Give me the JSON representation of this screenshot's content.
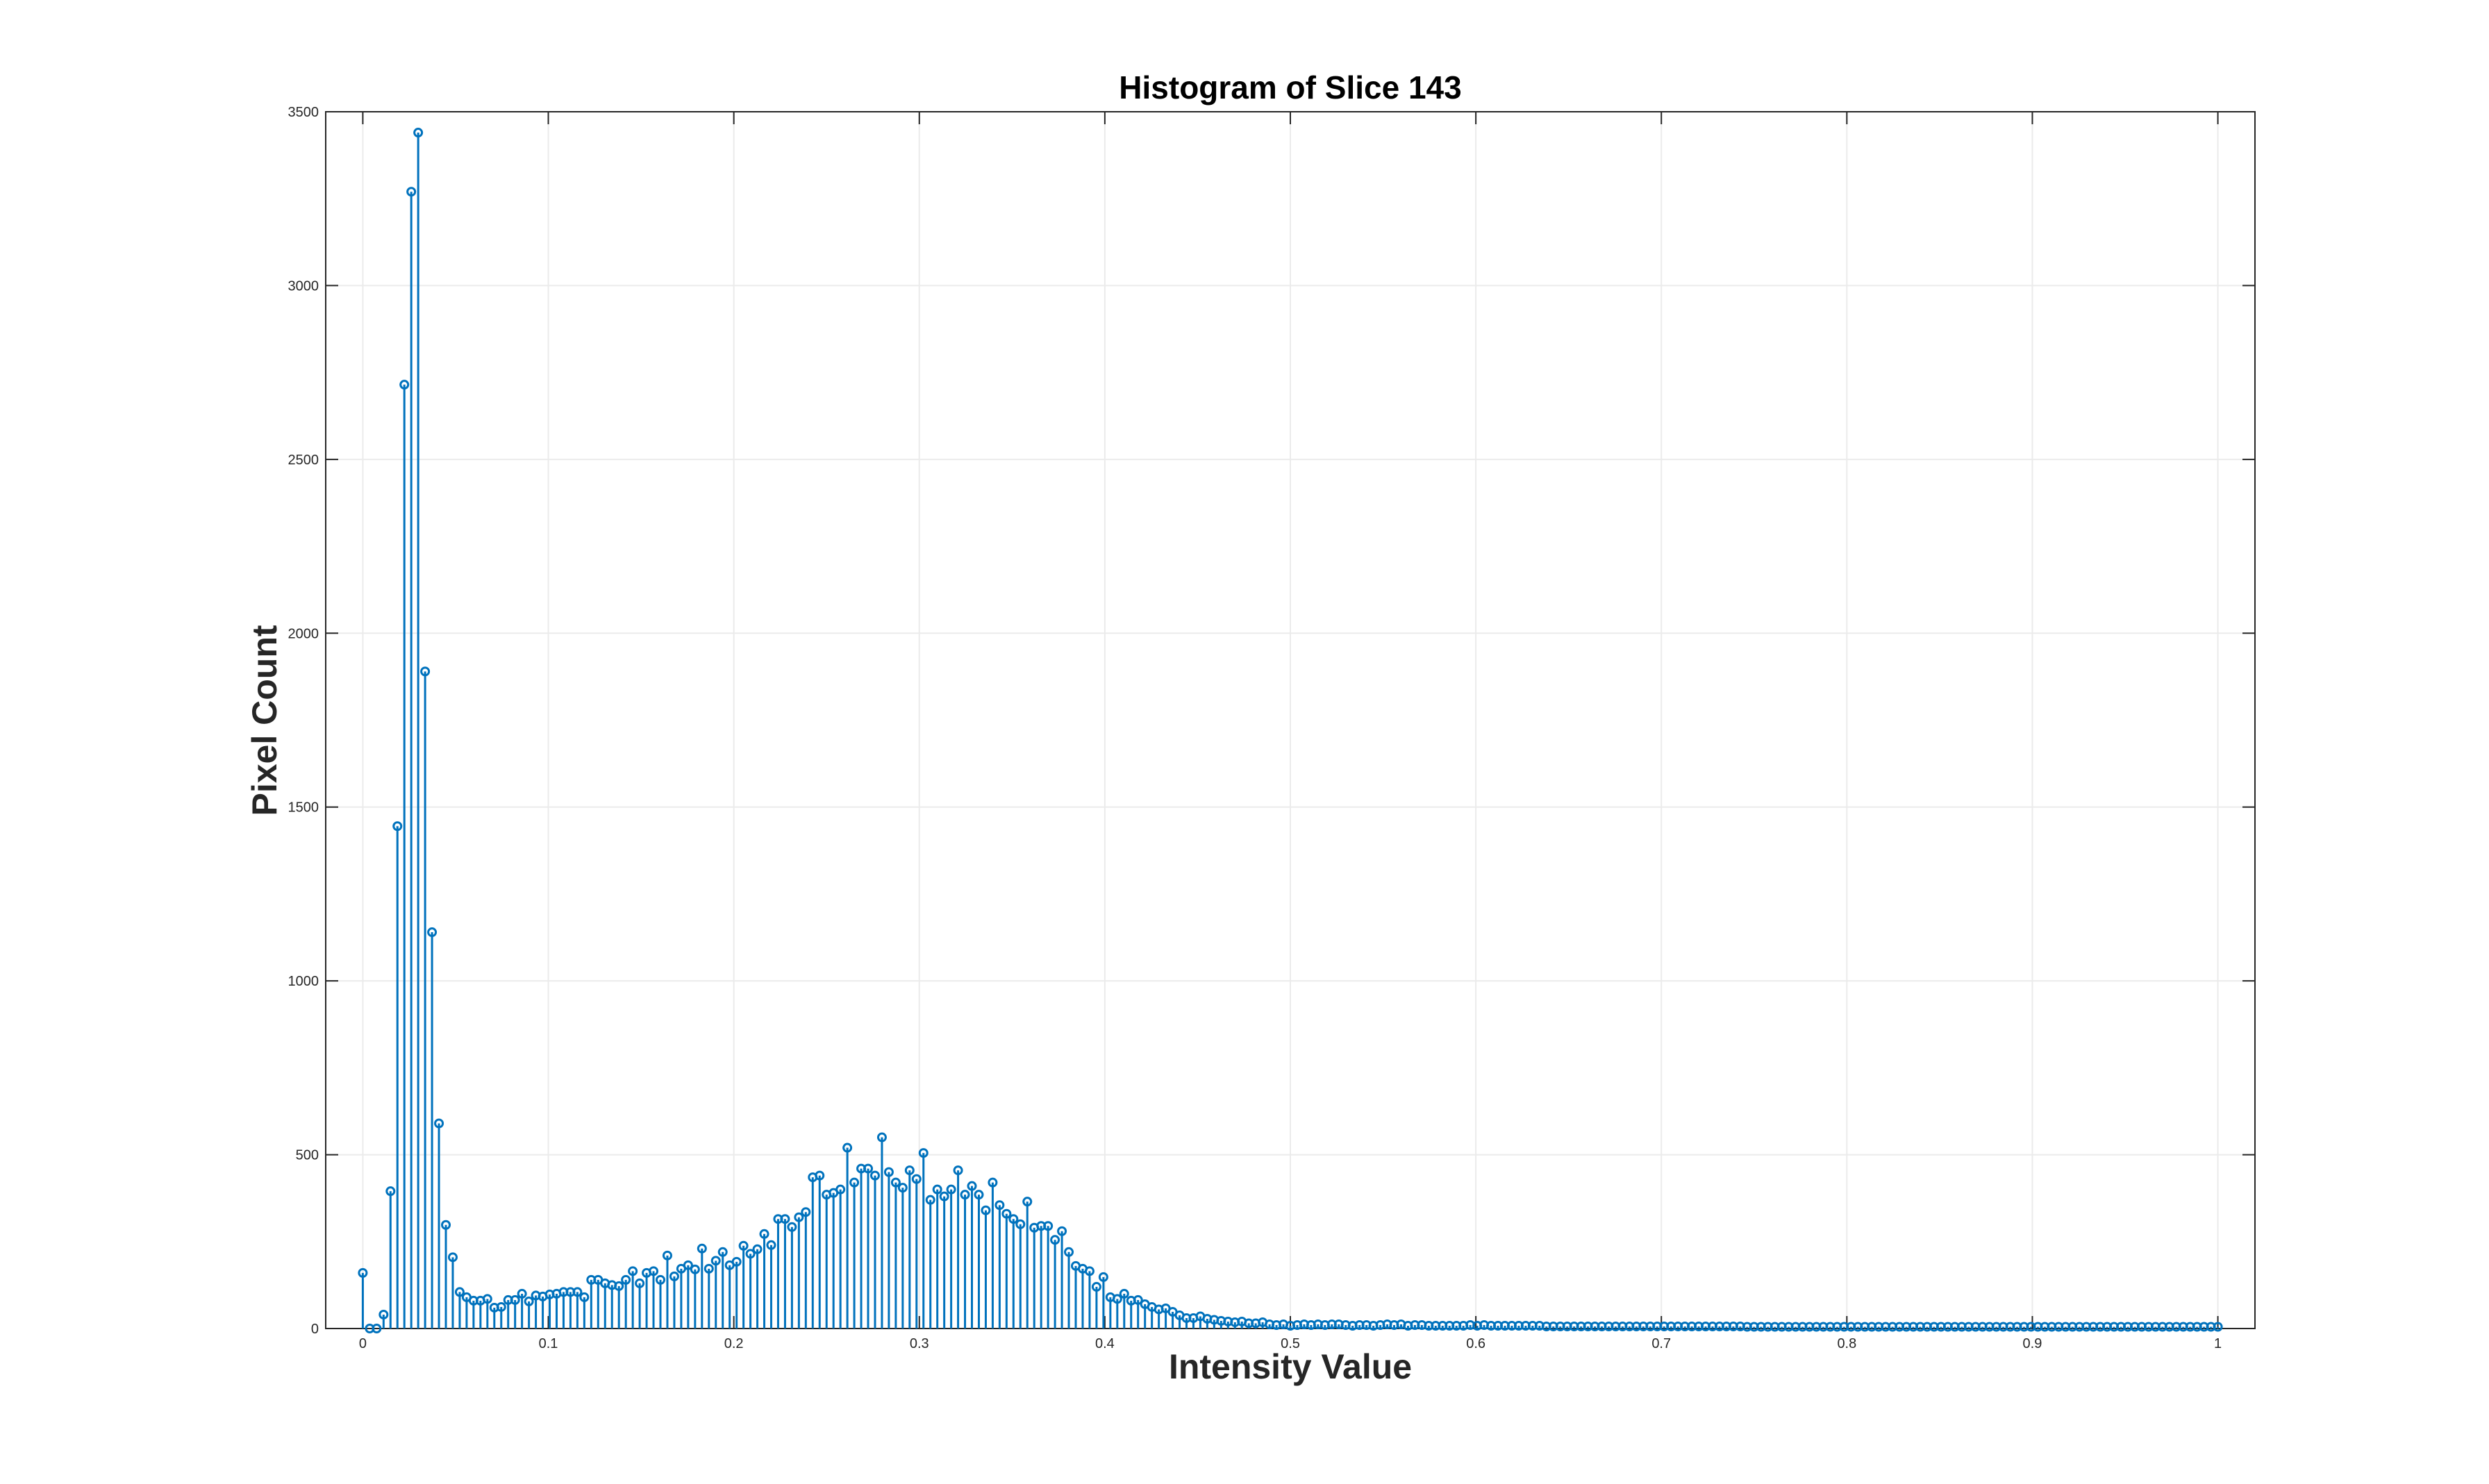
{
  "chart_data": {
    "type": "stem",
    "title": "Histogram of Slice 143",
    "xlabel": "Intensity Value",
    "ylabel": "Pixel Count",
    "xlim": [
      -0.02,
      1.02
    ],
    "ylim": [
      0,
      3500
    ],
    "xticks": [
      0,
      0.1,
      0.2,
      0.3,
      0.4,
      0.5,
      0.6,
      0.7,
      0.8,
      0.9,
      1
    ],
    "xtick_labels": [
      "0",
      "0.1",
      "0.2",
      "0.3",
      "0.4",
      "0.5",
      "0.6",
      "0.7",
      "0.8",
      "0.9",
      "1"
    ],
    "yticks": [
      0,
      500,
      1000,
      1500,
      2000,
      2500,
      3000,
      3500
    ],
    "ytick_labels": [
      "0",
      "500",
      "1000",
      "1500",
      "2000",
      "2500",
      "3000",
      "3500"
    ],
    "grid": true,
    "color": "#0072bd",
    "bins": 256,
    "y": [
      160,
      0,
      0,
      40,
      395,
      1445,
      2715,
      3270,
      3440,
      1890,
      1140,
      590,
      298,
      205,
      105,
      90,
      80,
      80,
      85,
      60,
      62,
      82,
      82,
      100,
      78,
      95,
      92,
      98,
      100,
      105,
      105,
      105,
      90,
      140,
      140,
      130,
      125,
      122,
      140,
      165,
      130,
      160,
      165,
      140,
      210,
      150,
      172,
      182,
      170,
      230,
      172,
      195,
      220,
      182,
      192,
      238,
      215,
      228,
      272,
      240,
      315,
      315,
      292,
      320,
      335,
      435,
      440,
      385,
      390,
      400,
      520,
      420,
      460,
      460,
      440,
      550,
      450,
      420,
      405,
      455,
      430,
      505,
      370,
      400,
      380,
      400,
      455,
      385,
      410,
      385,
      340,
      420,
      355,
      330,
      315,
      300,
      365,
      290,
      295,
      295,
      255,
      280,
      220,
      180,
      172,
      165,
      120,
      148,
      90,
      85,
      100,
      80,
      82,
      70,
      62,
      55,
      58,
      48,
      38,
      30,
      30,
      35,
      28,
      25,
      22,
      20,
      18,
      20,
      15,
      15,
      18,
      12,
      10,
      12,
      8,
      10,
      12,
      10,
      12,
      10,
      12,
      12,
      10,
      8,
      10,
      10,
      8,
      10,
      12,
      10,
      12,
      8,
      10,
      10,
      8,
      8,
      8,
      8,
      8,
      8,
      10,
      8,
      10,
      8,
      8,
      8,
      8,
      8,
      8,
      8,
      8,
      6,
      6,
      6,
      6,
      6,
      6,
      6,
      6,
      6,
      6,
      6,
      6,
      6,
      6,
      6,
      6,
      6,
      6,
      6,
      6,
      6,
      6,
      6,
      6,
      6,
      6,
      6,
      6,
      6,
      5,
      5,
      5,
      5,
      5,
      5,
      5,
      5,
      5,
      5,
      5,
      5,
      5,
      5,
      5,
      5,
      5,
      5,
      5,
      5,
      5,
      5,
      5,
      5,
      5,
      5,
      5,
      5,
      5,
      5,
      5,
      5,
      5,
      5,
      5,
      5,
      5,
      5,
      5,
      5,
      5,
      5,
      5,
      5,
      5,
      5,
      5,
      5,
      5,
      5,
      5,
      5,
      5,
      5,
      5,
      5,
      5,
      5,
      5,
      5,
      5,
      5,
      5,
      5,
      5,
      5,
      5,
      5,
      5
    ]
  }
}
